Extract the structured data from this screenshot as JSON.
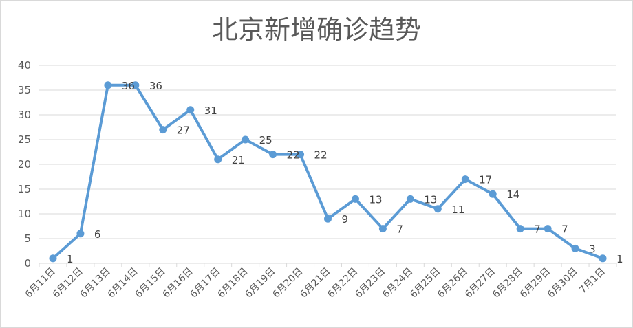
{
  "chart_data": {
    "type": "line",
    "title": "北京新增确诊趋势",
    "xlabel": "",
    "ylabel": "",
    "ylim": [
      0,
      40
    ],
    "yticks": [
      0,
      5,
      10,
      15,
      20,
      25,
      30,
      35,
      40
    ],
    "grid": true,
    "legend": "none",
    "categories": [
      "6月11日",
      "6月12日",
      "6月13日",
      "6月14日",
      "6月15日",
      "6月16日",
      "6月17日",
      "6月18日",
      "6月19日",
      "6月20日",
      "6月21日",
      "6月22日",
      "6月23日",
      "6月24日",
      "6月25日",
      "6月26日",
      "6月27日",
      "6月28日",
      "6月29日",
      "6月30日",
      "7月1日"
    ],
    "series": [
      {
        "name": "",
        "color": "#5b9bd5",
        "values": [
          1,
          6,
          36,
          36,
          27,
          31,
          21,
          25,
          22,
          22,
          9,
          13,
          7,
          13,
          11,
          17,
          14,
          7,
          7,
          3,
          1
        ]
      }
    ]
  }
}
